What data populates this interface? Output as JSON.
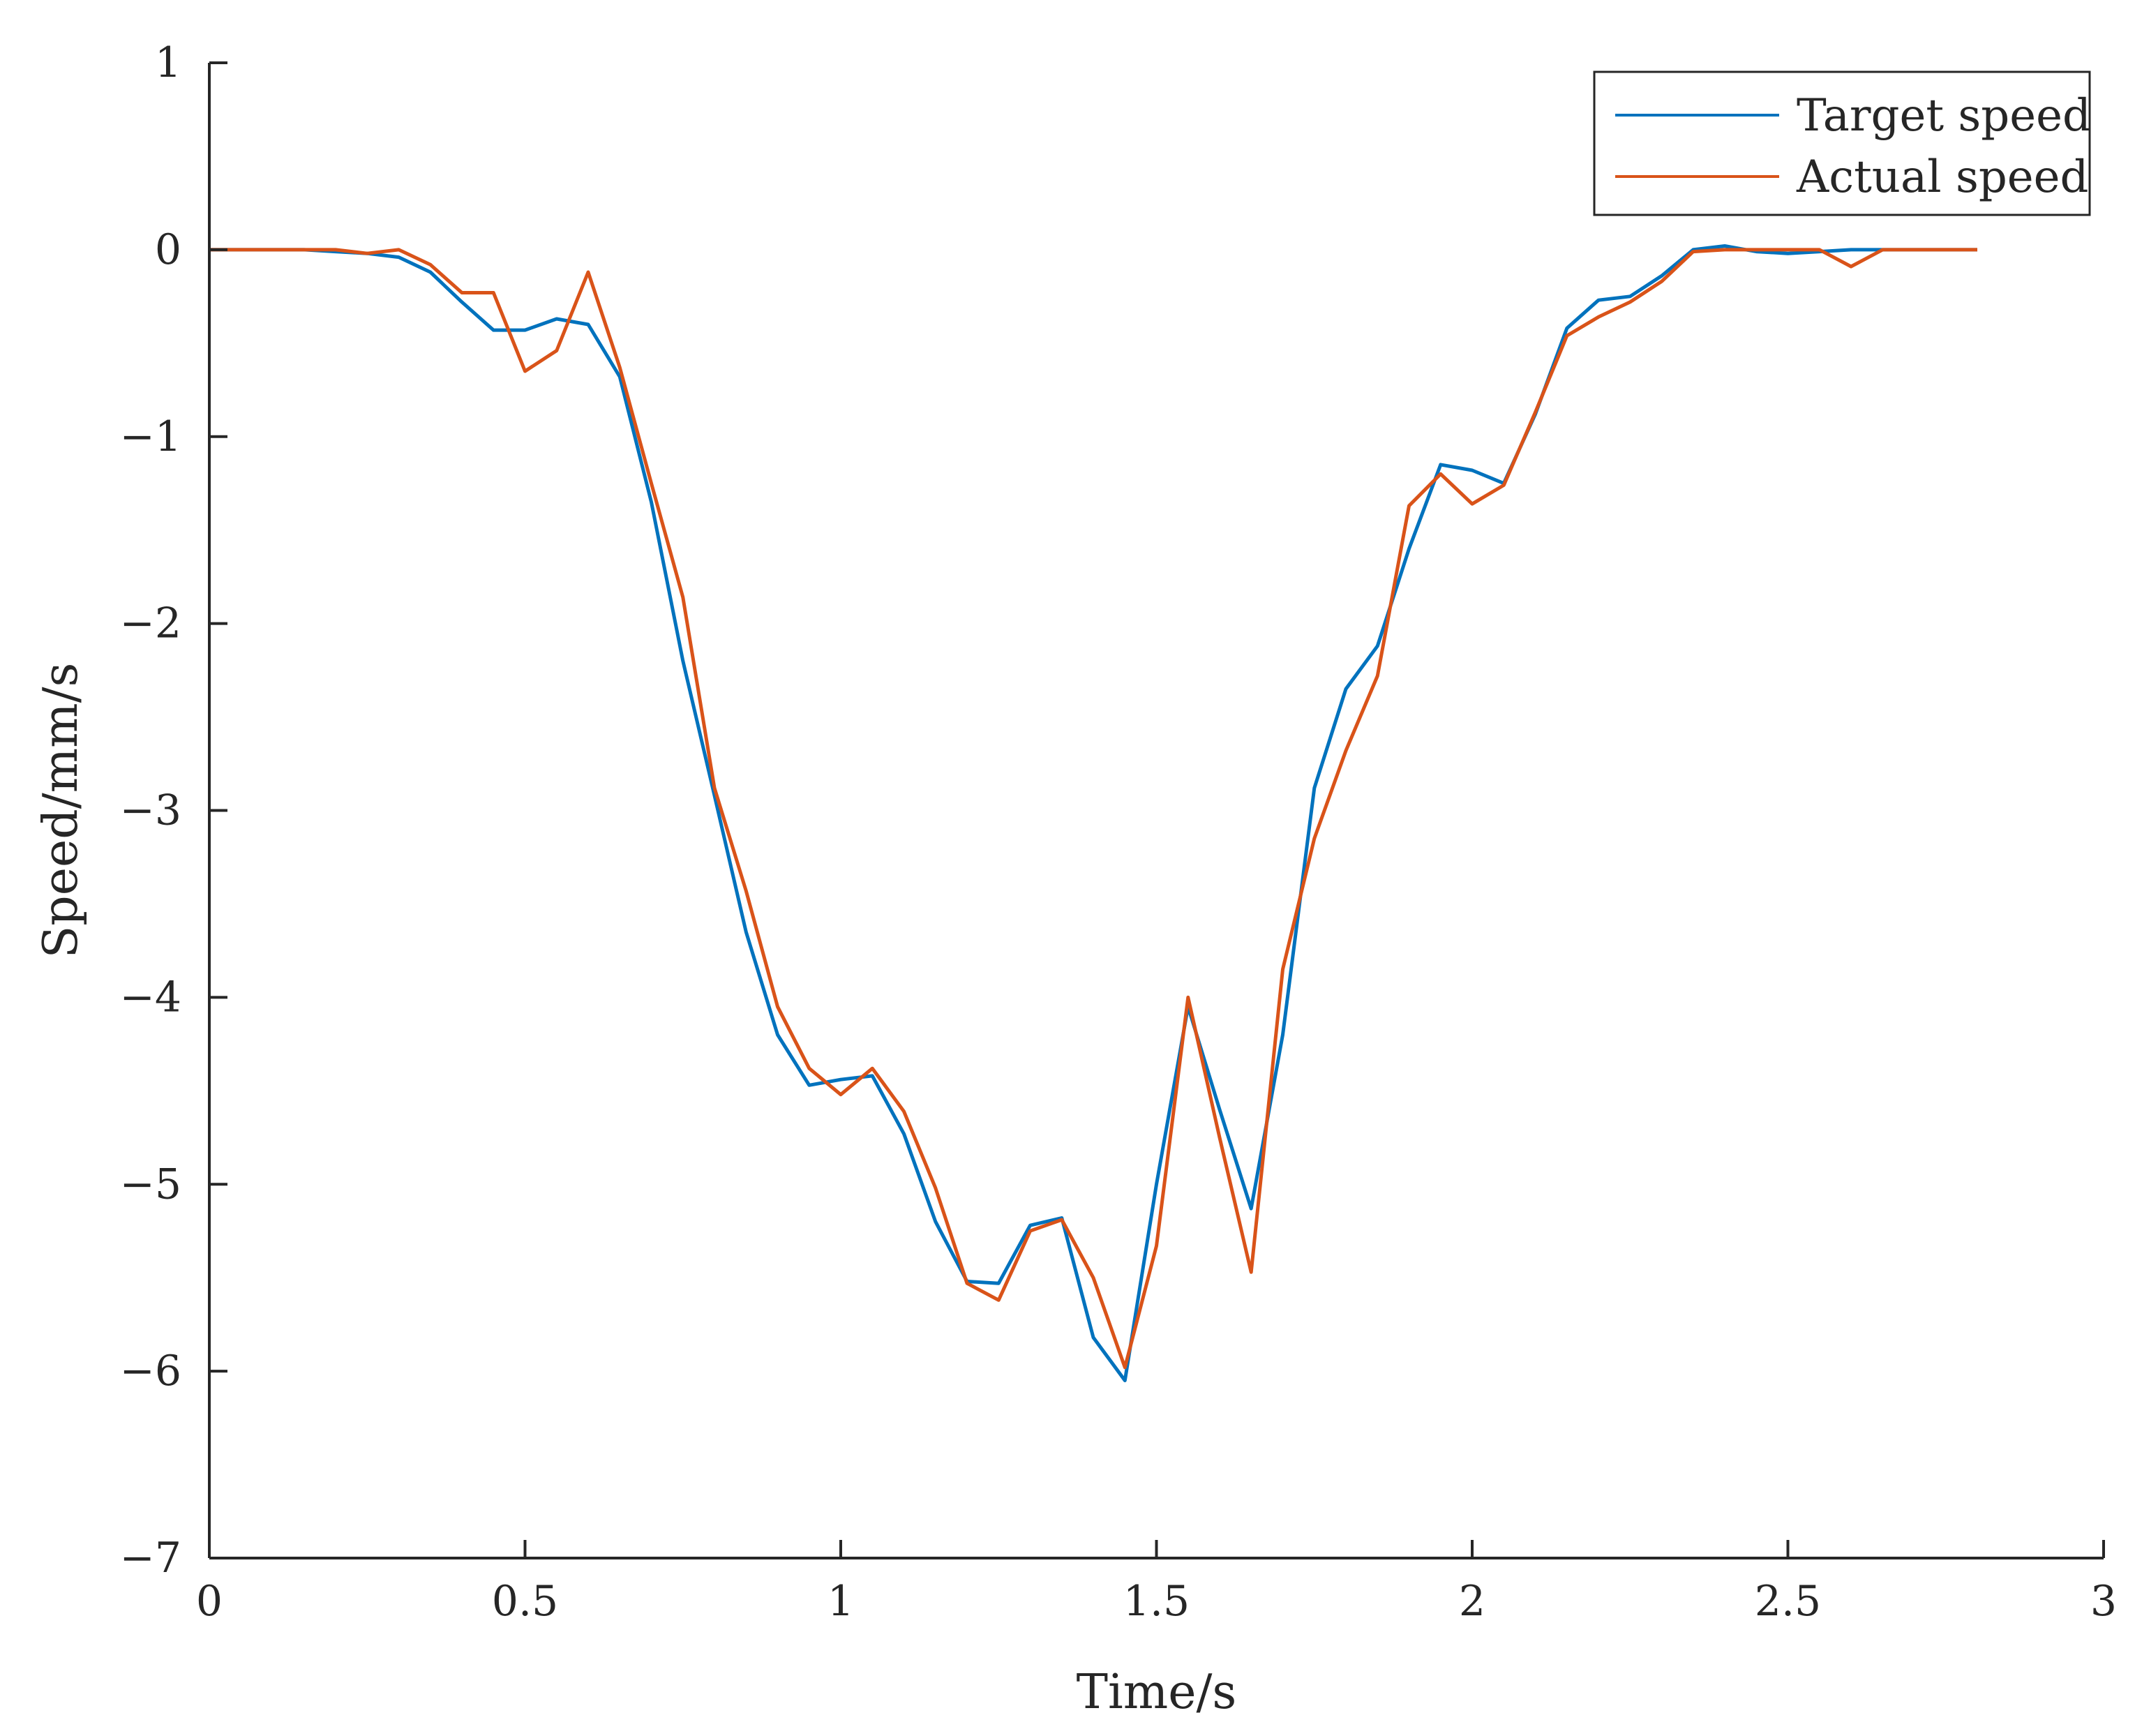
{
  "chart_data": {
    "type": "line",
    "title": "",
    "xlabel": "Time/s",
    "ylabel": "Speed/mm/s",
    "xlim": [
      0,
      3
    ],
    "ylim": [
      -7,
      1
    ],
    "xticks": [
      0,
      0.5,
      1,
      1.5,
      2,
      2.5,
      3
    ],
    "xtick_labels": [
      "0",
      "0.5",
      "1",
      "1.5",
      "2",
      "2.5",
      "3"
    ],
    "yticks": [
      1,
      0,
      -1,
      -2,
      -3,
      -4,
      -5,
      -6,
      -7
    ],
    "ytick_labels": [
      "1",
      "0",
      "−1",
      "−2",
      "−3",
      "−4",
      "−5",
      "−6",
      "−7"
    ],
    "grid": false,
    "legend_position": "top-right",
    "x": [
      0,
      0.05,
      0.1,
      0.15,
      0.2,
      0.25,
      0.3,
      0.35,
      0.4,
      0.45,
      0.5,
      0.55,
      0.6,
      0.65,
      0.7,
      0.75,
      0.8,
      0.85,
      0.9,
      0.95,
      1.0,
      1.05,
      1.1,
      1.15,
      1.2,
      1.25,
      1.3,
      1.35,
      1.4,
      1.45,
      1.5,
      1.55,
      1.6,
      1.65,
      1.7,
      1.75,
      1.8,
      1.85,
      1.9,
      1.95,
      2.0,
      2.05,
      2.1,
      2.15,
      2.2,
      2.25,
      2.3,
      2.35,
      2.4,
      2.45,
      2.5,
      2.55,
      2.6,
      2.65,
      2.7,
      2.75,
      2.8
    ],
    "series": [
      {
        "name": "Target speed",
        "color": "#0072BD",
        "values": [
          0,
          0,
          0,
          0,
          -0.01,
          -0.02,
          -0.04,
          -0.12,
          -0.28,
          -0.43,
          -0.43,
          -0.37,
          -0.4,
          -0.68,
          -1.35,
          -2.2,
          -2.92,
          -3.65,
          -4.2,
          -4.47,
          -4.44,
          -4.42,
          -4.73,
          -5.2,
          -5.52,
          -5.53,
          -5.22,
          -5.18,
          -5.82,
          -6.05,
          -5.0,
          -4.05,
          -4.6,
          -5.13,
          -4.2,
          -2.88,
          -2.35,
          -2.12,
          -1.6,
          -1.15,
          -1.18,
          -1.25,
          -0.88,
          -0.42,
          -0.27,
          -0.25,
          -0.14,
          0.0,
          0.02,
          -0.01,
          -0.02,
          -0.01,
          0.0,
          0.0,
          0.0,
          0.0,
          0.0
        ]
      },
      {
        "name": "Actual speed",
        "color": "#D95319",
        "values": [
          0,
          0,
          0,
          0,
          0,
          -0.02,
          0,
          -0.08,
          -0.23,
          -0.23,
          -0.65,
          -0.54,
          -0.12,
          -0.63,
          -1.25,
          -1.86,
          -2.88,
          -3.43,
          -4.05,
          -4.38,
          -4.52,
          -4.38,
          -4.61,
          -5.02,
          -5.53,
          -5.62,
          -5.25,
          -5.19,
          -5.5,
          -5.98,
          -5.33,
          -4.0,
          -4.75,
          -5.47,
          -3.85,
          -3.15,
          -2.68,
          -2.28,
          -1.37,
          -1.2,
          -1.36,
          -1.26,
          -0.87,
          -0.46,
          -0.36,
          -0.28,
          -0.17,
          -0.01,
          0.0,
          0.0,
          0.0,
          0.0,
          -0.09,
          0.0,
          0.0,
          0.0,
          0.0
        ]
      }
    ]
  }
}
